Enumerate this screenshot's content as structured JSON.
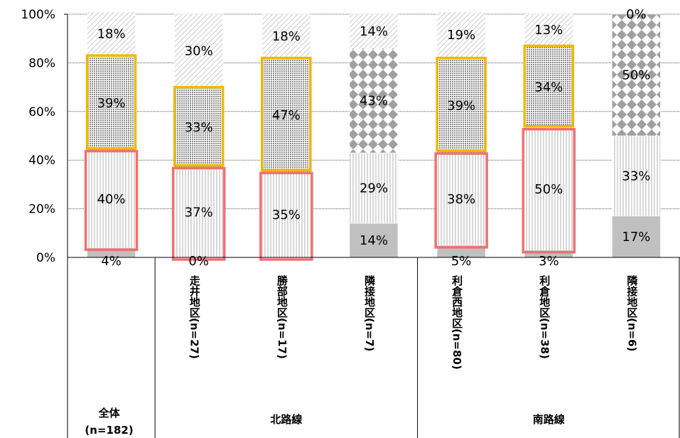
{
  "chart_data": {
    "type": "bar",
    "stacked": true,
    "percent": true,
    "ylim": [
      0,
      100
    ],
    "y_ticks": [
      "0%",
      "20%",
      "40%",
      "60%",
      "80%",
      "100%"
    ],
    "categories": [
      {
        "line1": "全体",
        "line2": "(n=182)",
        "vertical": false
      },
      {
        "line1": "走井地区(n=27)",
        "vertical": true
      },
      {
        "line1": "勝部地区(n=17)",
        "vertical": true
      },
      {
        "line1": "隣接地区(n=7)",
        "vertical": true
      },
      {
        "line1": "利倉西地区(n=80)",
        "vertical": true
      },
      {
        "line1": "利倉地区(n=38)",
        "vertical": true
      },
      {
        "line1": "隣接地区(n=6)",
        "vertical": true
      }
    ],
    "groups": [
      {
        "label": "北路線",
        "from": 1,
        "to": 3
      },
      {
        "label": "南路線",
        "from": 4,
        "to": 6
      }
    ],
    "series": [
      {
        "values": [
          4,
          0,
          0,
          14,
          5,
          3,
          17
        ],
        "labels": [
          "4%",
          "0%",
          "",
          "14%",
          "5%",
          "3%",
          "17%"
        ],
        "fill": "#c0c0c0",
        "pattern": "solid"
      },
      {
        "values": [
          40,
          37,
          35,
          29,
          38,
          50,
          33
        ],
        "labels": [
          "40%",
          "37%",
          "35%",
          "29%",
          "38%",
          "50%",
          "33%"
        ],
        "fill": "#ffffff",
        "pattern": "vertical-lines"
      },
      {
        "values": [
          39,
          33,
          47,
          43,
          39,
          34,
          50
        ],
        "labels": [
          "39%",
          "33%",
          "47%",
          "43%",
          "39%",
          "34%",
          "50%"
        ],
        "fill": "#ffffff",
        "pattern": "dots"
      },
      {
        "values": [
          18,
          30,
          18,
          14,
          19,
          13,
          0
        ],
        "labels": [
          "18%",
          "30%",
          "18%",
          "14%",
          "19%",
          "13%",
          "0%"
        ],
        "fill": "#ffffff",
        "pattern": "diagonal"
      }
    ],
    "pattern_override": {
      "3": {
        "2": "diamonds"
      },
      "6": {
        "2": "diamonds"
      }
    },
    "highlight": {
      "series_1": "#f07070",
      "series_2": "#f0b800",
      "categories": [
        0,
        1,
        2,
        4,
        5
      ]
    }
  }
}
